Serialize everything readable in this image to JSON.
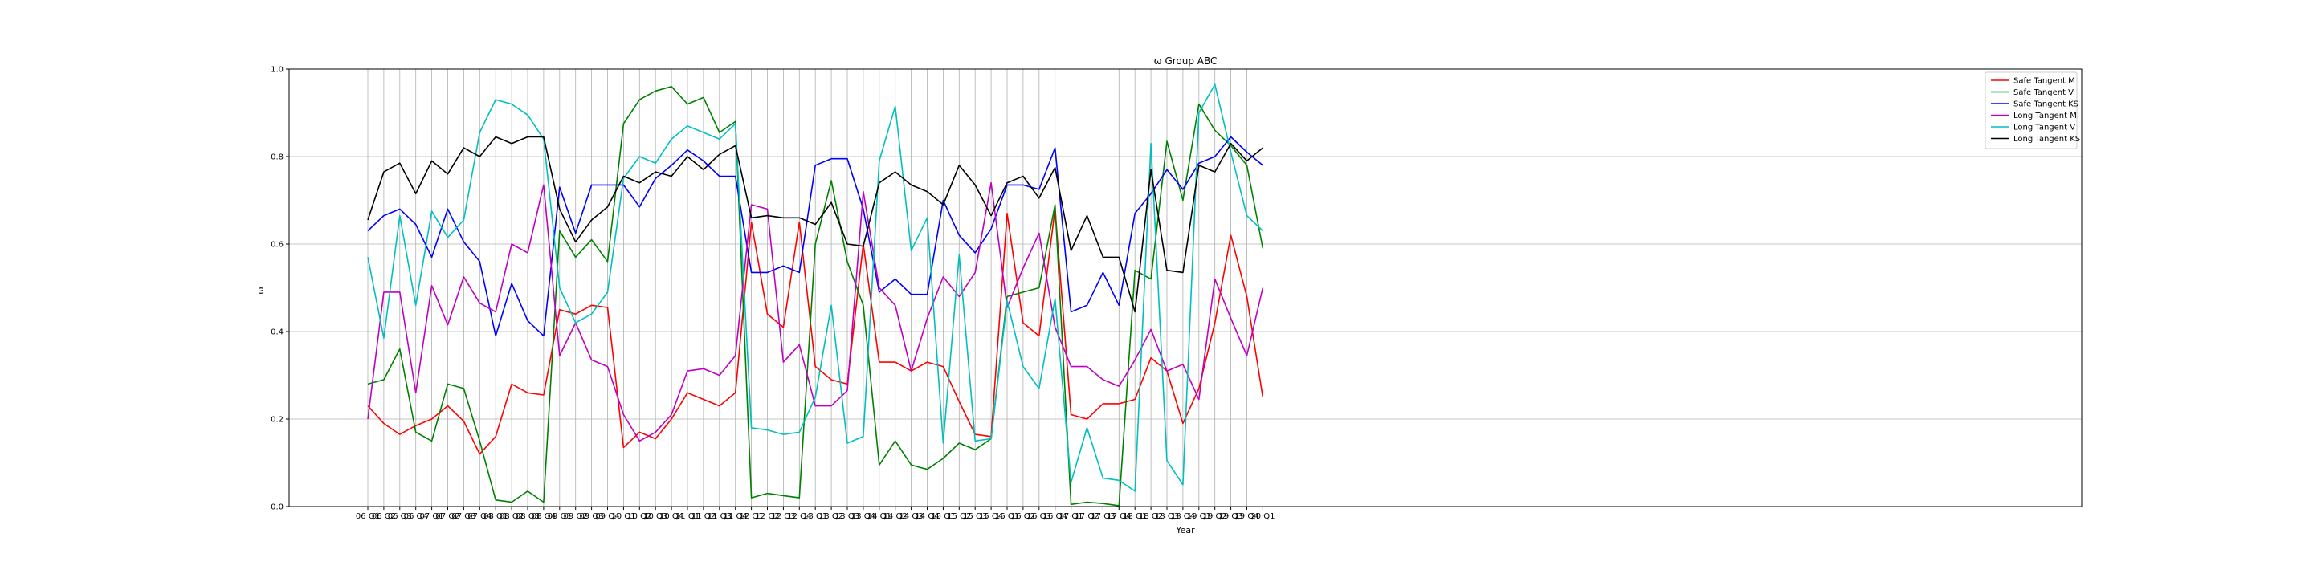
{
  "chart_data": {
    "type": "line",
    "title": "ω Group ABC",
    "xlabel": "Year",
    "ylabel": "ω",
    "ylim": [
      0,
      1
    ],
    "yticks": [
      "0.0",
      "0.2",
      "0.4",
      "0.6",
      "0.8",
      "1.0"
    ],
    "grid": true,
    "legend_position": "top-right",
    "categories": [
      "06 Q1",
      "06 Q2",
      "06 Q3",
      "06 Q4",
      "07 Q1",
      "07 Q2",
      "07 Q3",
      "07 Q4",
      "08 Q1",
      "08 Q2",
      "08 Q3",
      "08 Q4",
      "09 Q1",
      "09 Q2",
      "09 Q3",
      "09 Q4",
      "10 Q1",
      "10 Q2",
      "10 Q3",
      "10 Q4",
      "11 Q1",
      "11 Q2",
      "11 Q3",
      "11 Q4",
      "12 Q1",
      "12 Q2",
      "12 Q3",
      "12 Q4",
      "13 Q1",
      "13 Q2",
      "13 Q3",
      "13 Q4",
      "14 Q1",
      "14 Q2",
      "14 Q3",
      "14 Q4",
      "15 Q1",
      "15 Q2",
      "15 Q3",
      "15 Q4",
      "16 Q1",
      "16 Q2",
      "16 Q3",
      "16 Q4",
      "17 Q1",
      "17 Q2",
      "17 Q3",
      "17 Q4",
      "18 Q1",
      "18 Q2",
      "18 Q3",
      "18 Q4",
      "19 Q1",
      "19 Q2",
      "19 Q3",
      "19 Q4",
      "20 Q1"
    ],
    "series": [
      {
        "name": "Safe Tangent M",
        "color": "#ff0000",
        "values": [
          0.23,
          0.19,
          0.165,
          0.185,
          0.2,
          0.23,
          0.195,
          0.12,
          0.16,
          0.28,
          0.26,
          0.255,
          0.45,
          0.44,
          0.46,
          0.455,
          0.135,
          0.17,
          0.155,
          0.2,
          0.26,
          0.245,
          0.23,
          0.26,
          0.65,
          0.44,
          0.41,
          0.65,
          0.32,
          0.29,
          0.28,
          0.6,
          0.33,
          0.33,
          0.31,
          0.33,
          0.32,
          0.24,
          0.165,
          0.16,
          0.67,
          0.42,
          0.39,
          0.68,
          0.21,
          0.2,
          0.235,
          0.235,
          0.245,
          0.34,
          0.31,
          0.19,
          0.27,
          0.42,
          0.62,
          0.48,
          0.25
        ]
      },
      {
        "name": "Safe Tangent V",
        "color": "#008000",
        "values": [
          0.28,
          0.29,
          0.36,
          0.17,
          0.15,
          0.28,
          0.27,
          0.15,
          0.015,
          0.01,
          0.035,
          0.01,
          0.63,
          0.57,
          0.61,
          0.56,
          0.875,
          0.93,
          0.95,
          0.96,
          0.92,
          0.935,
          0.855,
          0.88,
          0.02,
          0.03,
          0.025,
          0.02,
          0.6,
          0.745,
          0.56,
          0.46,
          0.095,
          0.15,
          0.095,
          0.085,
          0.11,
          0.145,
          0.13,
          0.155,
          0.48,
          0.49,
          0.5,
          0.69,
          0.005,
          0.01,
          0.007,
          0.002,
          0.54,
          0.52,
          0.835,
          0.7,
          0.92,
          0.86,
          0.825,
          0.78,
          0.59
        ]
      },
      {
        "name": "Safe Tangent KS",
        "color": "#0000ff",
        "values": [
          0.63,
          0.665,
          0.68,
          0.645,
          0.57,
          0.68,
          0.605,
          0.56,
          0.39,
          0.51,
          0.425,
          0.39,
          0.73,
          0.625,
          0.735,
          0.735,
          0.735,
          0.685,
          0.75,
          0.78,
          0.815,
          0.79,
          0.755,
          0.755,
          0.535,
          0.535,
          0.55,
          0.535,
          0.78,
          0.795,
          0.795,
          0.68,
          0.49,
          0.52,
          0.485,
          0.485,
          0.7,
          0.62,
          0.58,
          0.635,
          0.735,
          0.735,
          0.725,
          0.82,
          0.445,
          0.46,
          0.535,
          0.46,
          0.67,
          0.715,
          0.77,
          0.725,
          0.785,
          0.8,
          0.845,
          0.81,
          0.78
        ]
      },
      {
        "name": "Long Tangent M",
        "color": "#c000c0",
        "values": [
          0.2,
          0.49,
          0.49,
          0.26,
          0.505,
          0.415,
          0.525,
          0.465,
          0.445,
          0.6,
          0.58,
          0.735,
          0.345,
          0.42,
          0.335,
          0.32,
          0.21,
          0.15,
          0.17,
          0.21,
          0.31,
          0.315,
          0.3,
          0.345,
          0.69,
          0.68,
          0.33,
          0.37,
          0.23,
          0.23,
          0.265,
          0.72,
          0.5,
          0.46,
          0.31,
          0.43,
          0.525,
          0.48,
          0.535,
          0.74,
          0.455,
          0.545,
          0.625,
          0.41,
          0.32,
          0.32,
          0.29,
          0.275,
          0.335,
          0.405,
          0.31,
          0.325,
          0.245,
          0.52,
          0.43,
          0.345,
          0.5
        ]
      },
      {
        "name": "Long Tangent V",
        "color": "#00bfbf",
        "values": [
          0.57,
          0.385,
          0.665,
          0.46,
          0.675,
          0.615,
          0.655,
          0.855,
          0.93,
          0.92,
          0.895,
          0.84,
          0.5,
          0.42,
          0.44,
          0.49,
          0.75,
          0.8,
          0.785,
          0.84,
          0.87,
          0.855,
          0.84,
          0.875,
          0.18,
          0.175,
          0.165,
          0.17,
          0.25,
          0.46,
          0.145,
          0.16,
          0.79,
          0.915,
          0.585,
          0.66,
          0.145,
          0.575,
          0.15,
          0.155,
          0.47,
          0.32,
          0.27,
          0.475,
          0.055,
          0.18,
          0.065,
          0.06,
          0.035,
          0.83,
          0.105,
          0.05,
          0.9,
          0.965,
          0.81,
          0.665,
          0.63
        ]
      },
      {
        "name": "Long Tangent KS",
        "color": "#000000",
        "values": [
          0.655,
          0.765,
          0.785,
          0.715,
          0.79,
          0.76,
          0.82,
          0.8,
          0.845,
          0.83,
          0.845,
          0.845,
          0.68,
          0.605,
          0.655,
          0.685,
          0.755,
          0.74,
          0.765,
          0.755,
          0.8,
          0.77,
          0.805,
          0.825,
          0.66,
          0.665,
          0.66,
          0.66,
          0.645,
          0.695,
          0.6,
          0.595,
          0.74,
          0.765,
          0.735,
          0.72,
          0.69,
          0.78,
          0.735,
          0.665,
          0.74,
          0.755,
          0.705,
          0.775,
          0.585,
          0.665,
          0.57,
          0.57,
          0.445,
          0.77,
          0.54,
          0.535,
          0.78,
          0.765,
          0.83,
          0.79,
          0.82
        ]
      }
    ]
  }
}
